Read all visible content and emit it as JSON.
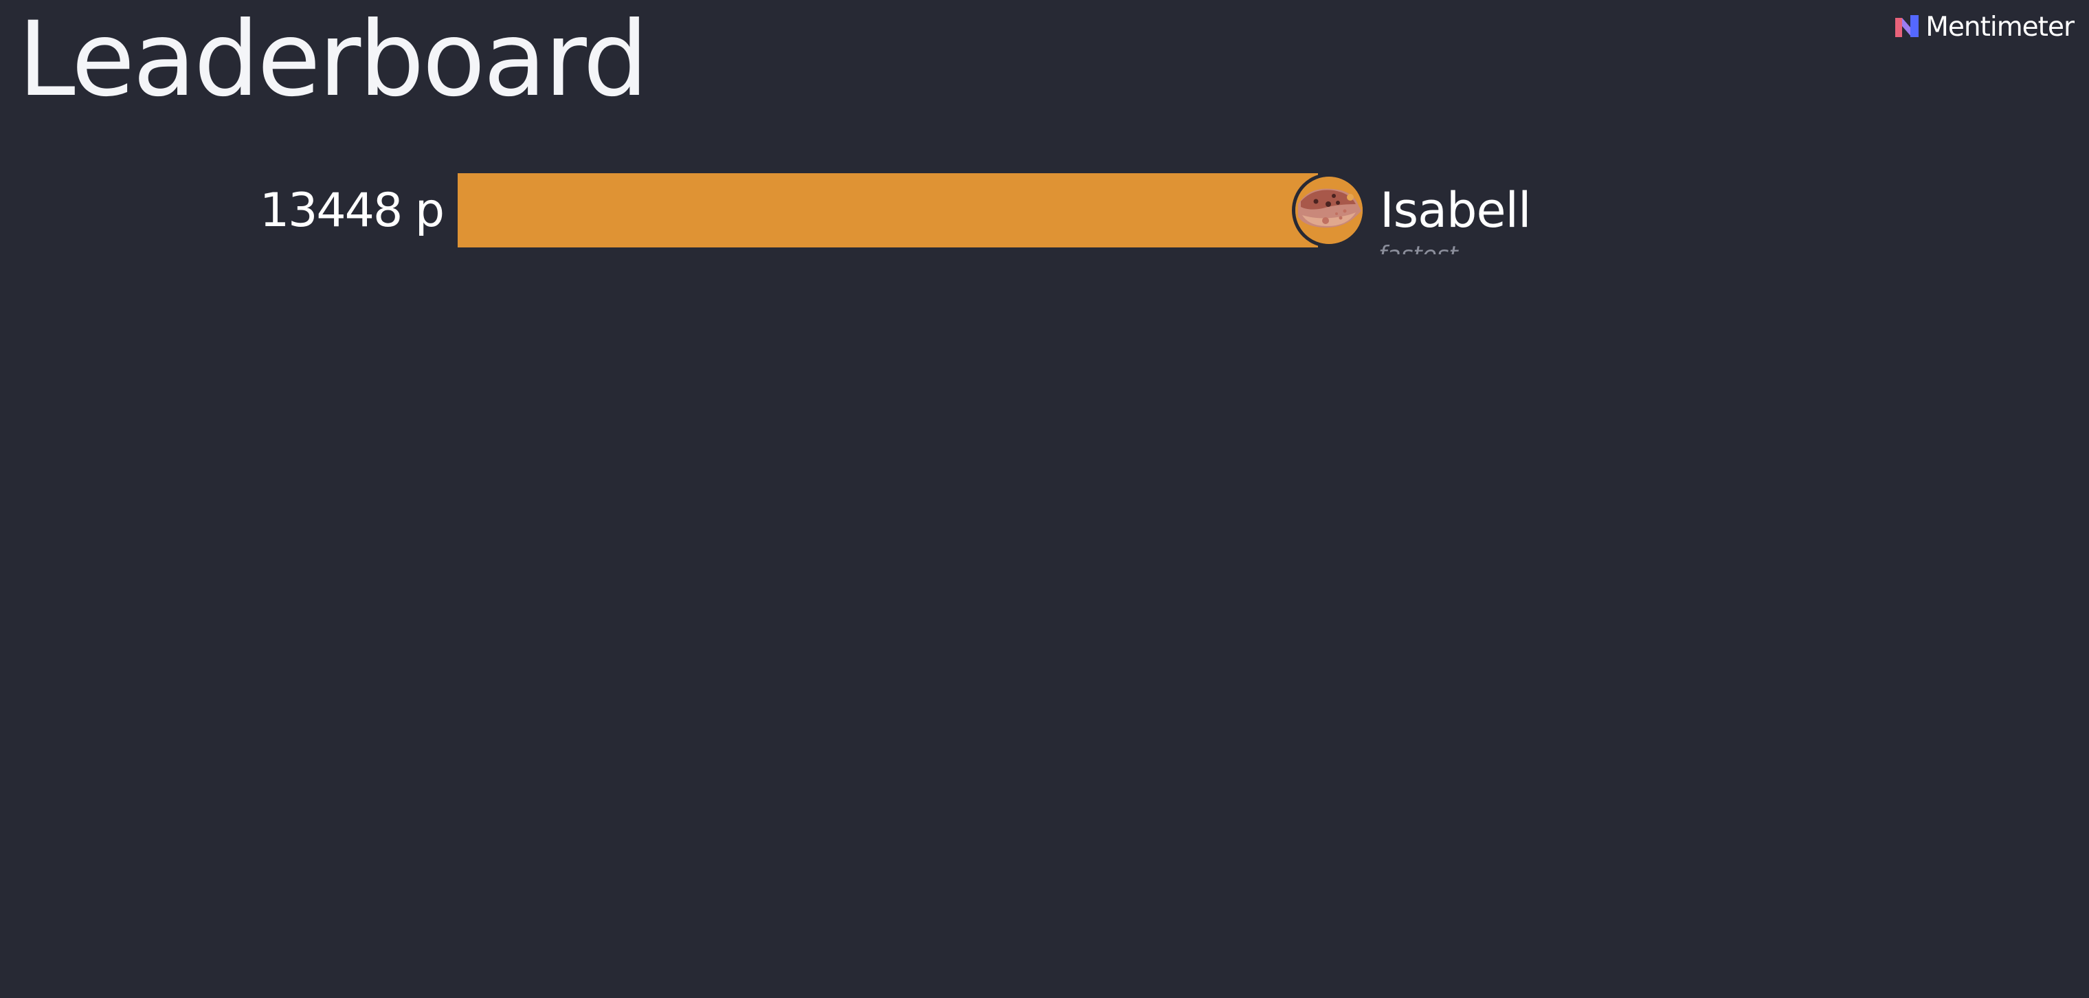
{
  "header": {
    "title": "Leaderboard"
  },
  "brand": {
    "name": "Mentimeter",
    "logo_icon": "mentimeter-logo-icon",
    "colors": [
      "#e8627a",
      "#5468ff",
      "#9b7cf0"
    ]
  },
  "leaderboard": {
    "bar_color": "#df9334",
    "entries": [
      {
        "rank": 1,
        "score": "13448 p",
        "name": "Isabell",
        "tag": "fastest",
        "avatar_icon": "cookie-avatar-icon",
        "bar_fill_fraction": 1.0
      }
    ]
  }
}
